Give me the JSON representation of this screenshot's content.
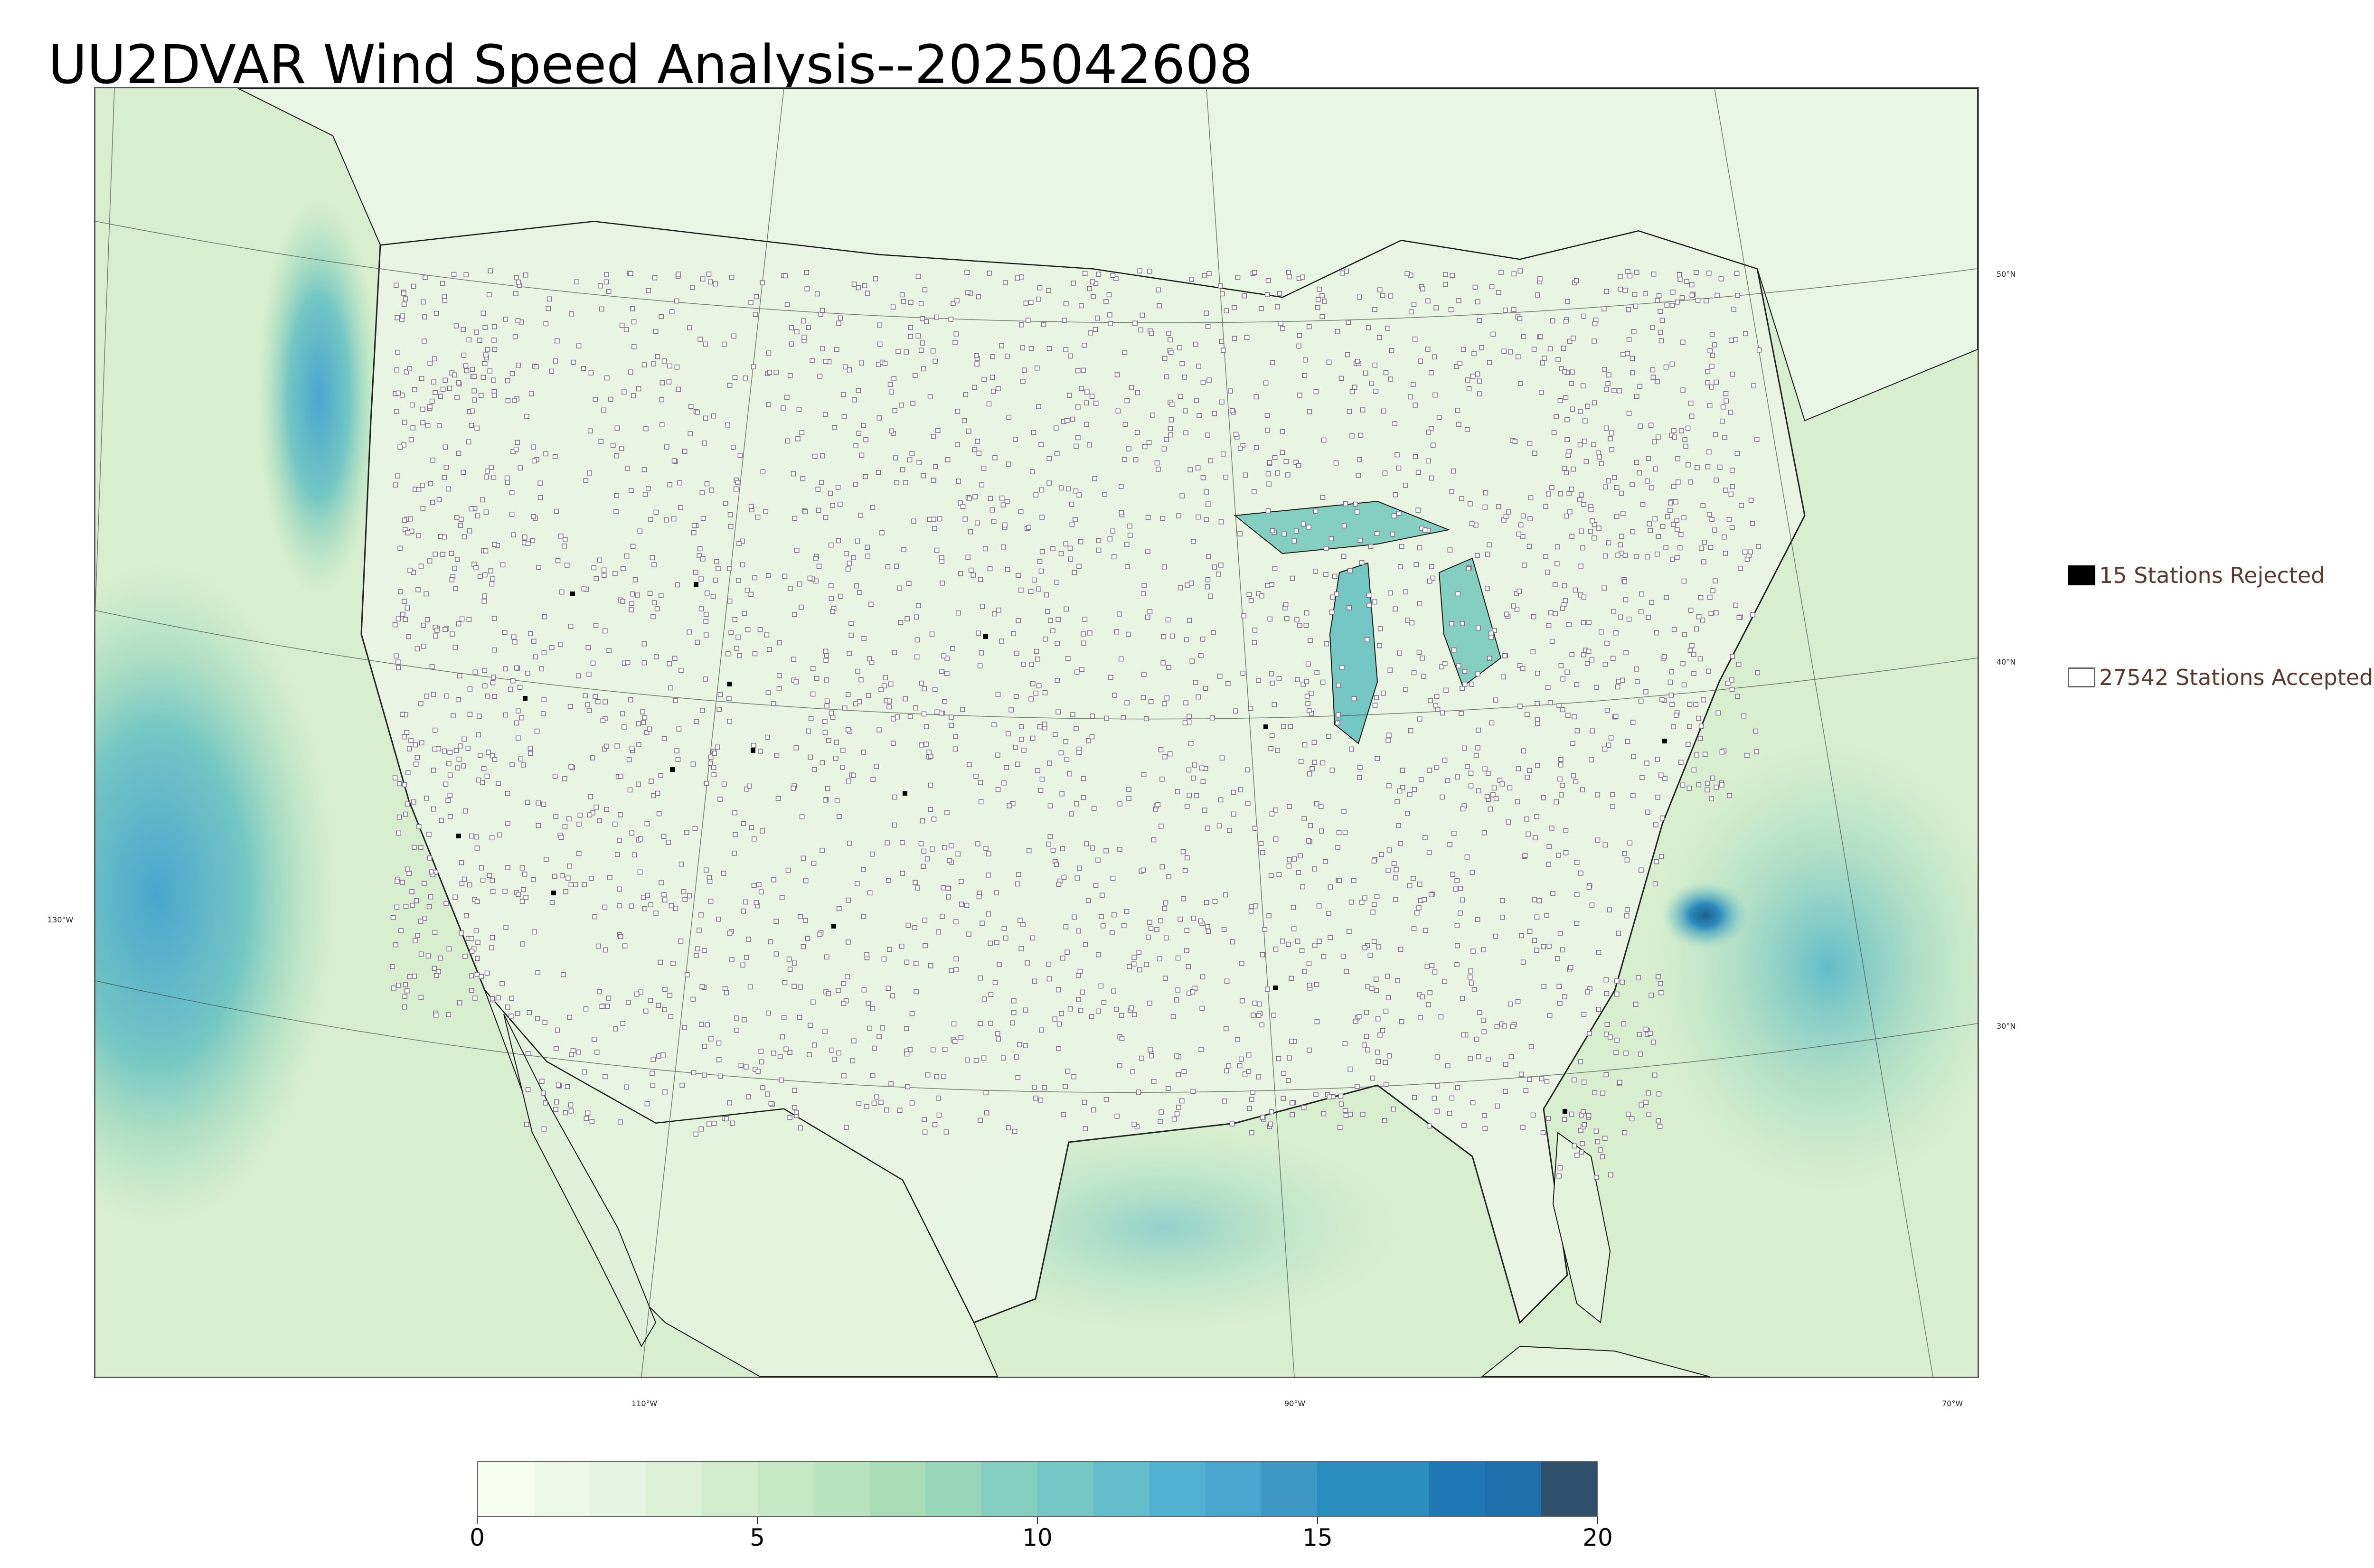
{
  "title": "UU2DVAR Wind Speed Analysis--2025042608",
  "legend": {
    "rejected_label": "15 Stations Rejected",
    "accepted_label": "27542 Stations Accepted",
    "rejected_color": "#000000",
    "accepted_color": "#ffffff"
  },
  "graticule": {
    "lat_labels": [
      "50°N",
      "40°N",
      "30°N"
    ],
    "lon_labels": [
      "130°W",
      "110°W",
      "90°W",
      "70°W"
    ]
  },
  "colorbar": {
    "min": 0,
    "max": 20,
    "tick_labels": [
      "0",
      "5",
      "10",
      "15",
      "20"
    ],
    "colors": [
      "#f7fcf0",
      "#eef8e8",
      "#e6f5e1",
      "#dcf1d6",
      "#d2edcc",
      "#c6e8c2",
      "#b8e3bd",
      "#a8ddb5",
      "#97d6bb",
      "#85cfc0",
      "#74c7c4",
      "#63bdca",
      "#52b1d0",
      "#4aa6cf",
      "#3f97c6",
      "#2b8cbe",
      "#2b8cbe",
      "#1f78b4",
      "#1d6fab",
      "#2f4f6a"
    ]
  },
  "map": {
    "background_color": "#d8efcf",
    "station_color": "#7a6a86",
    "land_outline_color": "#1a1a1a"
  }
}
